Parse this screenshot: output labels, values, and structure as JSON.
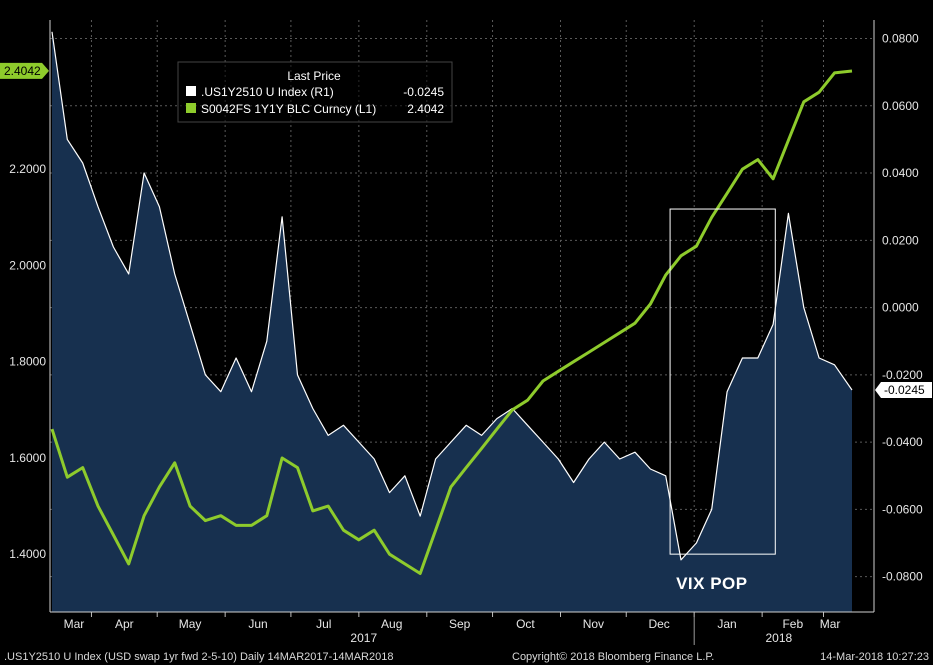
{
  "chart_data": {
    "type": "line",
    "title": "",
    "x_period": {
      "start": "2017-03-14",
      "end": "2018-03-14"
    },
    "x_tick_labels": [
      "Mar",
      "Apr",
      "May",
      "Jun",
      "Jul",
      "Aug",
      "Sep",
      "Oct",
      "Nov",
      "Dec",
      "Jan",
      "Feb",
      "Mar"
    ],
    "year_labels": [
      "2017",
      "2018"
    ],
    "y_left": {
      "ticks": [
        "1.4000",
        "1.6000",
        "1.8000",
        "2.0000",
        "2.2000"
      ],
      "range": [
        1.28,
        2.51
      ]
    },
    "y_right": {
      "ticks": [
        "-0.0800",
        "-0.0600",
        "-0.0400",
        "-0.0200",
        "0.0000",
        "0.0200",
        "0.0400",
        "0.0600",
        "0.0800"
      ],
      "range": [
        -0.0905,
        0.0855
      ]
    },
    "grid": true,
    "legend": {
      "title": "Last Price",
      "position": "top-left",
      "entries": [
        {
          "name": ".US1Y2510 U Index  (R1)",
          "value": "-0.0245",
          "color": "#ffffff"
        },
        {
          "name": "S0042FS 1Y1Y BLC Curncy  (L1)",
          "value": "2.4042",
          "color": "#8ecb2c"
        }
      ]
    },
    "last_value_tags": {
      "left": "2.4042",
      "right": "-0.0245"
    },
    "series": [
      {
        "name": ".US1Y2510 U Index",
        "axis": "right",
        "color": "#ffffff",
        "fill": "#17304f",
        "x": [
          "2017-03-14",
          "2017-03-21",
          "2017-03-28",
          "2017-04-04",
          "2017-04-11",
          "2017-04-18",
          "2017-04-25",
          "2017-05-02",
          "2017-05-09",
          "2017-05-16",
          "2017-05-23",
          "2017-05-30",
          "2017-06-06",
          "2017-06-13",
          "2017-06-20",
          "2017-06-27",
          "2017-07-04",
          "2017-07-11",
          "2017-07-18",
          "2017-07-25",
          "2017-08-01",
          "2017-08-08",
          "2017-08-15",
          "2017-08-22",
          "2017-08-29",
          "2017-09-05",
          "2017-09-12",
          "2017-09-19",
          "2017-09-26",
          "2017-10-03",
          "2017-10-10",
          "2017-10-17",
          "2017-10-24",
          "2017-10-31",
          "2017-11-07",
          "2017-11-14",
          "2017-11-21",
          "2017-11-28",
          "2017-12-05",
          "2017-12-12",
          "2017-12-19",
          "2017-12-26",
          "2018-01-02",
          "2018-01-09",
          "2018-01-16",
          "2018-01-23",
          "2018-01-30",
          "2018-02-06",
          "2018-02-13",
          "2018-02-20",
          "2018-02-27",
          "2018-03-06",
          "2018-03-14"
        ],
        "values": [
          0.082,
          0.05,
          0.043,
          0.03,
          0.018,
          0.01,
          0.04,
          0.03,
          0.01,
          -0.005,
          -0.02,
          -0.025,
          -0.015,
          -0.025,
          -0.01,
          0.027,
          -0.02,
          -0.03,
          -0.038,
          -0.035,
          -0.04,
          -0.045,
          -0.055,
          -0.05,
          -0.062,
          -0.045,
          -0.04,
          -0.035,
          -0.038,
          -0.033,
          -0.03,
          -0.035,
          -0.04,
          -0.045,
          -0.052,
          -0.045,
          -0.04,
          -0.045,
          -0.043,
          -0.048,
          -0.05,
          -0.075,
          -0.07,
          -0.06,
          -0.025,
          -0.015,
          -0.015,
          -0.005,
          0.028,
          0.0,
          -0.015,
          -0.017,
          -0.0245
        ]
      },
      {
        "name": "S0042FS 1Y1Y BLC Curncy",
        "axis": "left",
        "color": "#8ecb2c",
        "x": [
          "2017-03-14",
          "2017-03-21",
          "2017-03-28",
          "2017-04-04",
          "2017-04-11",
          "2017-04-18",
          "2017-04-25",
          "2017-05-02",
          "2017-05-09",
          "2017-05-16",
          "2017-05-23",
          "2017-05-30",
          "2017-06-06",
          "2017-06-13",
          "2017-06-20",
          "2017-06-27",
          "2017-07-04",
          "2017-07-11",
          "2017-07-18",
          "2017-07-25",
          "2017-08-01",
          "2017-08-08",
          "2017-08-15",
          "2017-08-22",
          "2017-08-29",
          "2017-09-05",
          "2017-09-12",
          "2017-09-19",
          "2017-09-26",
          "2017-10-03",
          "2017-10-10",
          "2017-10-17",
          "2017-10-24",
          "2017-10-31",
          "2017-11-07",
          "2017-11-14",
          "2017-11-21",
          "2017-11-28",
          "2017-12-05",
          "2017-12-12",
          "2017-12-19",
          "2017-12-26",
          "2018-01-02",
          "2018-01-09",
          "2018-01-16",
          "2018-01-23",
          "2018-01-30",
          "2018-02-06",
          "2018-02-13",
          "2018-02-20",
          "2018-02-27",
          "2018-03-06",
          "2018-03-14"
        ],
        "values": [
          1.66,
          1.56,
          1.58,
          1.5,
          1.44,
          1.38,
          1.48,
          1.54,
          1.59,
          1.5,
          1.47,
          1.48,
          1.46,
          1.46,
          1.48,
          1.6,
          1.58,
          1.49,
          1.5,
          1.45,
          1.43,
          1.45,
          1.4,
          1.38,
          1.36,
          1.45,
          1.54,
          1.58,
          1.62,
          1.66,
          1.7,
          1.72,
          1.76,
          1.78,
          1.8,
          1.82,
          1.84,
          1.86,
          1.88,
          1.92,
          1.98,
          2.02,
          2.04,
          2.1,
          2.15,
          2.2,
          2.22,
          2.18,
          2.26,
          2.34,
          2.36,
          2.4,
          2.404
        ]
      }
    ],
    "annotations": [
      {
        "text": "VIX POP",
        "box_x": [
          "2017-12-21",
          "2018-02-07"
        ],
        "box_y_right": [
          -0.0733,
          0.0293
        ]
      }
    ]
  },
  "footer": {
    "left": ".US1Y2510 U Index (USD swap 1yr fwd 2-5-10)  Daily 14MAR2017-14MAR2018",
    "center": "Copyright© 2018 Bloomberg Finance L.P.",
    "right": "14-Mar-2018 10:27:23"
  }
}
